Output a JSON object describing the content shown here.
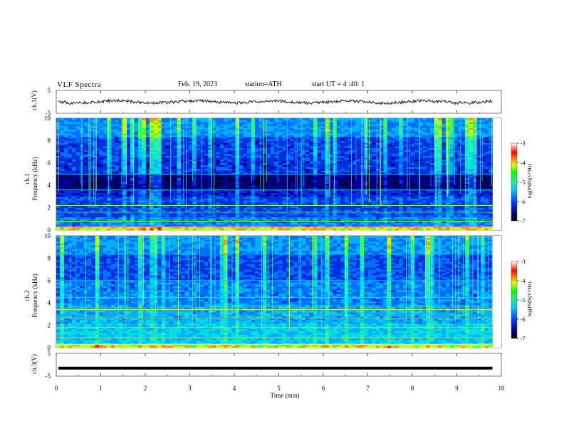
{
  "header": {
    "title": "VLF Spectra",
    "date": "Feb. 19, 2023",
    "station": "station=ATH",
    "start": "start UT =  4 :40: 1"
  },
  "chart_data": [
    {
      "type": "line",
      "panel": "ch1-voltage",
      "ylabel": "ch.1(V)",
      "ylim": [
        -5,
        5
      ],
      "yticks": [
        -5,
        5
      ],
      "xlim": [
        0,
        10
      ],
      "trace_level_V": 0,
      "trace_color": "#222222"
    },
    {
      "type": "heatmap",
      "panel": "ch1-spectrogram",
      "ylabel": "ch.1\nFrequency (kHz)",
      "ylim": [
        0,
        10
      ],
      "yticks": [
        0,
        2,
        4,
        6,
        8,
        10
      ],
      "xlim": [
        0,
        10
      ],
      "data_end_min": 9.8,
      "colorbar": {
        "label": "log(PSD)(V²/Hz)",
        "range": [
          -7,
          -3
        ],
        "ticks": [
          -3,
          -4,
          -5,
          -6,
          -7
        ]
      }
    },
    {
      "type": "heatmap",
      "panel": "ch2-spectrogram",
      "ylabel": "ch.2\nFrequency (kHz)",
      "ylim": [
        0,
        10
      ],
      "yticks": [
        0,
        2,
        4,
        6,
        8,
        10
      ],
      "xlim": [
        0,
        10
      ],
      "data_end_min": 9.8,
      "colorbar": {
        "label": "log(PSD)(V²/Hz)",
        "range": [
          -7,
          -3
        ],
        "ticks": [
          -3,
          -4,
          -5,
          -6,
          -7
        ]
      }
    },
    {
      "type": "line",
      "panel": "ch3-voltage",
      "ylabel": "ch.3(V)",
      "ylim": [
        -5,
        5
      ],
      "yticks": [
        -5,
        5
      ],
      "xlim": [
        0,
        10
      ],
      "trace_level_V": -1.5,
      "trace_color": "#000000"
    }
  ],
  "xaxis": {
    "label": "Time (min)",
    "ticks": [
      0,
      1,
      2,
      3,
      4,
      5,
      6,
      7,
      8,
      9,
      10
    ]
  },
  "labels": {
    "ch1_voltage": "ch.1(V)",
    "ch1_line1": "ch.1",
    "ch1_line2": "Frequency (kHz)",
    "ch2_line1": "ch.2",
    "ch2_line2": "Frequency (kHz)",
    "ch3_voltage": "ch.3(V)",
    "colorbar": "log(PSD)(V²/Hz)"
  }
}
